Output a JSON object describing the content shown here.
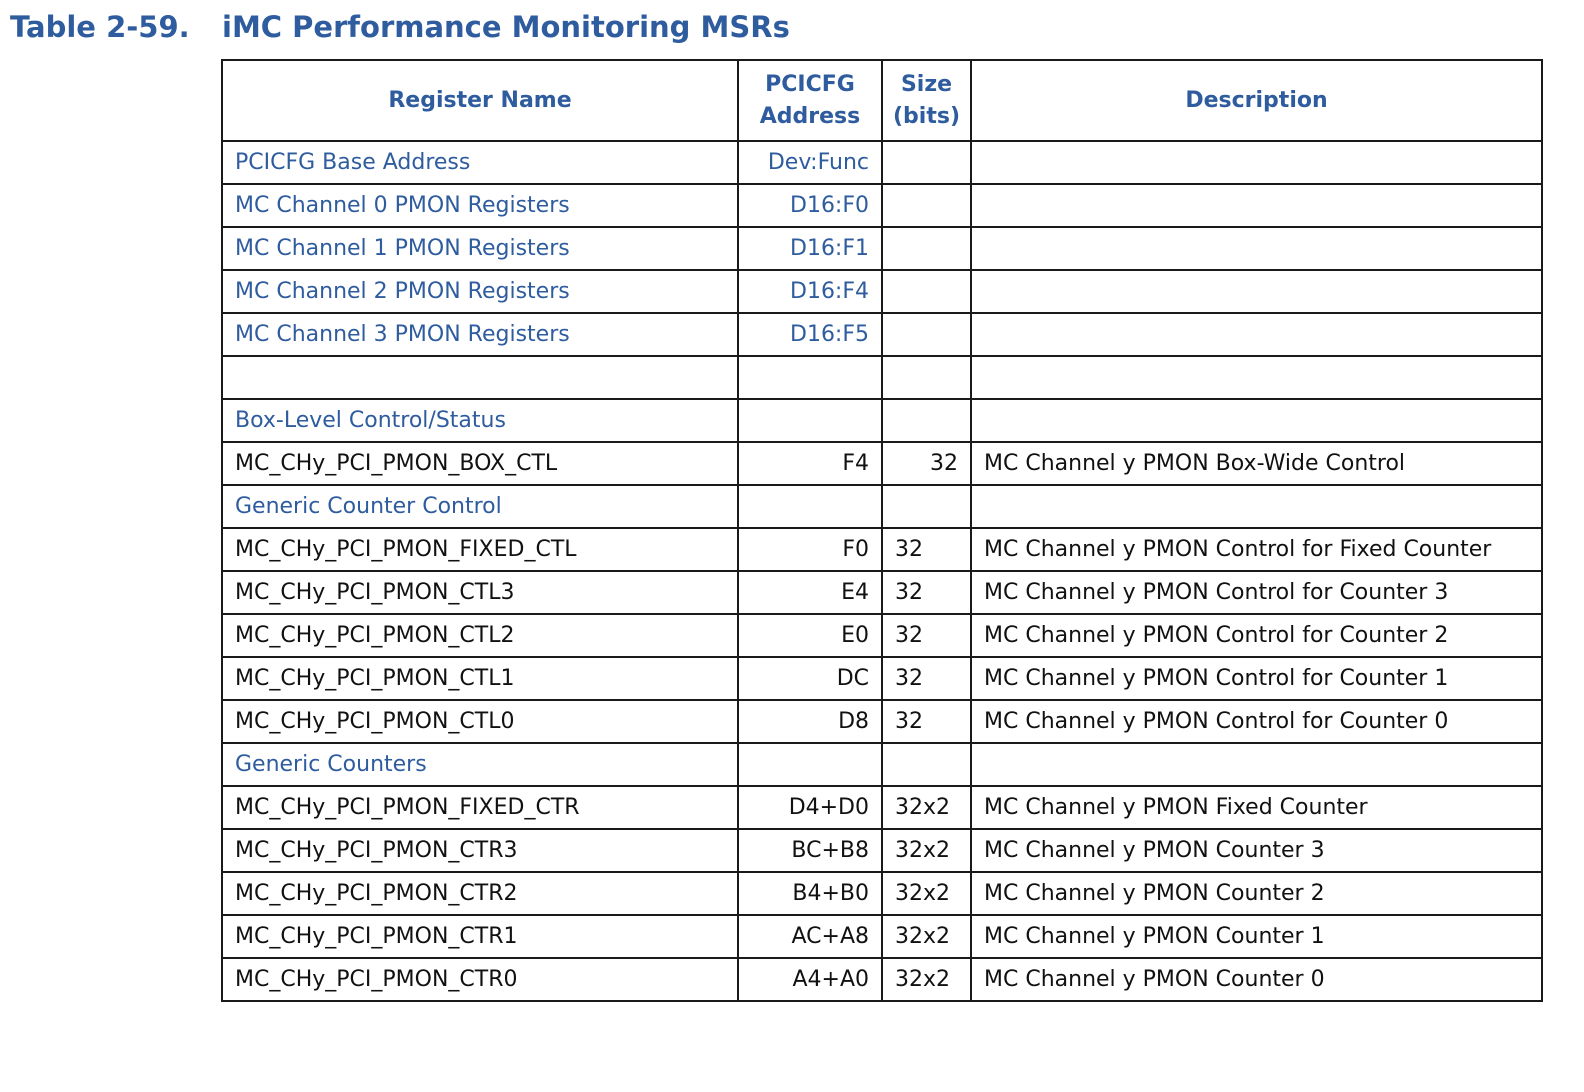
{
  "title": {
    "number": "Table 2-59.",
    "text": "iMC Performance Monitoring MSRs"
  },
  "headers": {
    "register_name": "Register Name",
    "address_line1": "PCICFG",
    "address_line2": "Address",
    "size_line1": "Size",
    "size_line2": "(bits)",
    "description": "Description"
  },
  "rows": [
    {
      "name": "PCICFG Base Address",
      "addr": "Dev:Func",
      "size": "",
      "desc": "",
      "style": "blue"
    },
    {
      "name": "MC Channel 0 PMON Registers",
      "addr": "D16:F0",
      "size": "",
      "desc": "",
      "style": "blue"
    },
    {
      "name": "MC Channel 1 PMON Registers",
      "addr": "D16:F1",
      "size": "",
      "desc": "",
      "style": "blue"
    },
    {
      "name": "MC Channel 2 PMON Registers",
      "addr": "D16:F4",
      "size": "",
      "desc": "",
      "style": "blue"
    },
    {
      "name": "MC Channel 3 PMON Registers",
      "addr": "D16:F5",
      "size": "",
      "desc": "",
      "style": "blue"
    },
    {
      "name": "",
      "addr": "",
      "size": "",
      "desc": "",
      "style": "blue"
    },
    {
      "name": "Box-Level Control/Status",
      "addr": "",
      "size": "",
      "desc": "",
      "style": "blue"
    },
    {
      "name": "MC_CHy_PCI_PMON_BOX_CTL",
      "addr": "F4",
      "size": "32",
      "desc": "MC Channel y PMON Box-Wide Control",
      "style": "normal",
      "size_align": "right"
    },
    {
      "name": "Generic Counter Control",
      "addr": "",
      "size": "",
      "desc": "",
      "style": "blue"
    },
    {
      "name": "MC_CHy_PCI_PMON_FIXED_CTL",
      "addr": "F0",
      "size": "32",
      "desc": "MC Channel y PMON Control for Fixed Counter",
      "style": "normal"
    },
    {
      "name": "MC_CHy_PCI_PMON_CTL3",
      "addr": "E4",
      "size": "32",
      "desc": "MC Channel y PMON Control for Counter 3",
      "style": "normal"
    },
    {
      "name": "MC_CHy_PCI_PMON_CTL2",
      "addr": "E0",
      "size": "32",
      "desc": "MC Channel y PMON Control for Counter 2",
      "style": "normal"
    },
    {
      "name": "MC_CHy_PCI_PMON_CTL1",
      "addr": "DC",
      "size": "32",
      "desc": "MC Channel y PMON Control for Counter 1",
      "style": "normal"
    },
    {
      "name": "MC_CHy_PCI_PMON_CTL0",
      "addr": "D8",
      "size": "32",
      "desc": "MC Channel y PMON Control for Counter 0",
      "style": "normal"
    },
    {
      "name": "Generic Counters",
      "addr": "",
      "size": "",
      "desc": "",
      "style": "blue"
    },
    {
      "name": "MC_CHy_PCI_PMON_FIXED_CTR",
      "addr": "D4+D0",
      "size": "32x2",
      "desc": "MC Channel y PMON Fixed Counter",
      "style": "normal"
    },
    {
      "name": "MC_CHy_PCI_PMON_CTR3",
      "addr": "BC+B8",
      "size": "32x2",
      "desc": "MC Channel y PMON Counter 3",
      "style": "normal"
    },
    {
      "name": "MC_CHy_PCI_PMON_CTR2",
      "addr": "B4+B0",
      "size": "32x2",
      "desc": "MC Channel y PMON Counter 2",
      "style": "normal"
    },
    {
      "name": "MC_CHy_PCI_PMON_CTR1",
      "addr": "AC+A8",
      "size": "32x2",
      "desc": "MC Channel y PMON Counter 1",
      "style": "normal"
    },
    {
      "name": "MC_CHy_PCI_PMON_CTR0",
      "addr": "A4+A0",
      "size": "32x2",
      "desc": "MC Channel y PMON Counter 0",
      "style": "normal"
    }
  ],
  "colors": {
    "heading_blue": "#2e5c9e",
    "text": "#111111",
    "border": "#1a1a1a"
  }
}
